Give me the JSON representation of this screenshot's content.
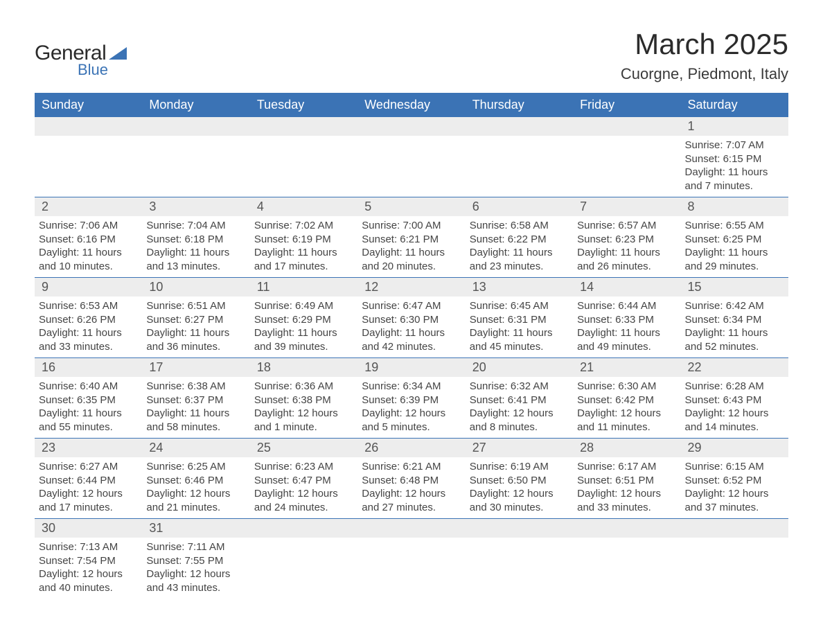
{
  "logo": {
    "word1": "General",
    "word2": "Blue",
    "accent_color": "#3b73b5"
  },
  "header": {
    "month_title": "March 2025",
    "location": "Cuorgne, Piedmont, Italy"
  },
  "calendar": {
    "header_bg": "#3b73b5",
    "header_fg": "#ffffff",
    "daynum_bg": "#ededed",
    "border_color": "#3b73b5",
    "text_color": "#444444",
    "columns": [
      "Sunday",
      "Monday",
      "Tuesday",
      "Wednesday",
      "Thursday",
      "Friday",
      "Saturday"
    ],
    "weeks": [
      [
        null,
        null,
        null,
        null,
        null,
        null,
        {
          "n": "1",
          "sunrise": "Sunrise: 7:07 AM",
          "sunset": "Sunset: 6:15 PM",
          "daylight": "Daylight: 11 hours and 7 minutes."
        }
      ],
      [
        {
          "n": "2",
          "sunrise": "Sunrise: 7:06 AM",
          "sunset": "Sunset: 6:16 PM",
          "daylight": "Daylight: 11 hours and 10 minutes."
        },
        {
          "n": "3",
          "sunrise": "Sunrise: 7:04 AM",
          "sunset": "Sunset: 6:18 PM",
          "daylight": "Daylight: 11 hours and 13 minutes."
        },
        {
          "n": "4",
          "sunrise": "Sunrise: 7:02 AM",
          "sunset": "Sunset: 6:19 PM",
          "daylight": "Daylight: 11 hours and 17 minutes."
        },
        {
          "n": "5",
          "sunrise": "Sunrise: 7:00 AM",
          "sunset": "Sunset: 6:21 PM",
          "daylight": "Daylight: 11 hours and 20 minutes."
        },
        {
          "n": "6",
          "sunrise": "Sunrise: 6:58 AM",
          "sunset": "Sunset: 6:22 PM",
          "daylight": "Daylight: 11 hours and 23 minutes."
        },
        {
          "n": "7",
          "sunrise": "Sunrise: 6:57 AM",
          "sunset": "Sunset: 6:23 PM",
          "daylight": "Daylight: 11 hours and 26 minutes."
        },
        {
          "n": "8",
          "sunrise": "Sunrise: 6:55 AM",
          "sunset": "Sunset: 6:25 PM",
          "daylight": "Daylight: 11 hours and 29 minutes."
        }
      ],
      [
        {
          "n": "9",
          "sunrise": "Sunrise: 6:53 AM",
          "sunset": "Sunset: 6:26 PM",
          "daylight": "Daylight: 11 hours and 33 minutes."
        },
        {
          "n": "10",
          "sunrise": "Sunrise: 6:51 AM",
          "sunset": "Sunset: 6:27 PM",
          "daylight": "Daylight: 11 hours and 36 minutes."
        },
        {
          "n": "11",
          "sunrise": "Sunrise: 6:49 AM",
          "sunset": "Sunset: 6:29 PM",
          "daylight": "Daylight: 11 hours and 39 minutes."
        },
        {
          "n": "12",
          "sunrise": "Sunrise: 6:47 AM",
          "sunset": "Sunset: 6:30 PM",
          "daylight": "Daylight: 11 hours and 42 minutes."
        },
        {
          "n": "13",
          "sunrise": "Sunrise: 6:45 AM",
          "sunset": "Sunset: 6:31 PM",
          "daylight": "Daylight: 11 hours and 45 minutes."
        },
        {
          "n": "14",
          "sunrise": "Sunrise: 6:44 AM",
          "sunset": "Sunset: 6:33 PM",
          "daylight": "Daylight: 11 hours and 49 minutes."
        },
        {
          "n": "15",
          "sunrise": "Sunrise: 6:42 AM",
          "sunset": "Sunset: 6:34 PM",
          "daylight": "Daylight: 11 hours and 52 minutes."
        }
      ],
      [
        {
          "n": "16",
          "sunrise": "Sunrise: 6:40 AM",
          "sunset": "Sunset: 6:35 PM",
          "daylight": "Daylight: 11 hours and 55 minutes."
        },
        {
          "n": "17",
          "sunrise": "Sunrise: 6:38 AM",
          "sunset": "Sunset: 6:37 PM",
          "daylight": "Daylight: 11 hours and 58 minutes."
        },
        {
          "n": "18",
          "sunrise": "Sunrise: 6:36 AM",
          "sunset": "Sunset: 6:38 PM",
          "daylight": "Daylight: 12 hours and 1 minute."
        },
        {
          "n": "19",
          "sunrise": "Sunrise: 6:34 AM",
          "sunset": "Sunset: 6:39 PM",
          "daylight": "Daylight: 12 hours and 5 minutes."
        },
        {
          "n": "20",
          "sunrise": "Sunrise: 6:32 AM",
          "sunset": "Sunset: 6:41 PM",
          "daylight": "Daylight: 12 hours and 8 minutes."
        },
        {
          "n": "21",
          "sunrise": "Sunrise: 6:30 AM",
          "sunset": "Sunset: 6:42 PM",
          "daylight": "Daylight: 12 hours and 11 minutes."
        },
        {
          "n": "22",
          "sunrise": "Sunrise: 6:28 AM",
          "sunset": "Sunset: 6:43 PM",
          "daylight": "Daylight: 12 hours and 14 minutes."
        }
      ],
      [
        {
          "n": "23",
          "sunrise": "Sunrise: 6:27 AM",
          "sunset": "Sunset: 6:44 PM",
          "daylight": "Daylight: 12 hours and 17 minutes."
        },
        {
          "n": "24",
          "sunrise": "Sunrise: 6:25 AM",
          "sunset": "Sunset: 6:46 PM",
          "daylight": "Daylight: 12 hours and 21 minutes."
        },
        {
          "n": "25",
          "sunrise": "Sunrise: 6:23 AM",
          "sunset": "Sunset: 6:47 PM",
          "daylight": "Daylight: 12 hours and 24 minutes."
        },
        {
          "n": "26",
          "sunrise": "Sunrise: 6:21 AM",
          "sunset": "Sunset: 6:48 PM",
          "daylight": "Daylight: 12 hours and 27 minutes."
        },
        {
          "n": "27",
          "sunrise": "Sunrise: 6:19 AM",
          "sunset": "Sunset: 6:50 PM",
          "daylight": "Daylight: 12 hours and 30 minutes."
        },
        {
          "n": "28",
          "sunrise": "Sunrise: 6:17 AM",
          "sunset": "Sunset: 6:51 PM",
          "daylight": "Daylight: 12 hours and 33 minutes."
        },
        {
          "n": "29",
          "sunrise": "Sunrise: 6:15 AM",
          "sunset": "Sunset: 6:52 PM",
          "daylight": "Daylight: 12 hours and 37 minutes."
        }
      ],
      [
        {
          "n": "30",
          "sunrise": "Sunrise: 7:13 AM",
          "sunset": "Sunset: 7:54 PM",
          "daylight": "Daylight: 12 hours and 40 minutes."
        },
        {
          "n": "31",
          "sunrise": "Sunrise: 7:11 AM",
          "sunset": "Sunset: 7:55 PM",
          "daylight": "Daylight: 12 hours and 43 minutes."
        },
        null,
        null,
        null,
        null,
        null
      ]
    ]
  }
}
